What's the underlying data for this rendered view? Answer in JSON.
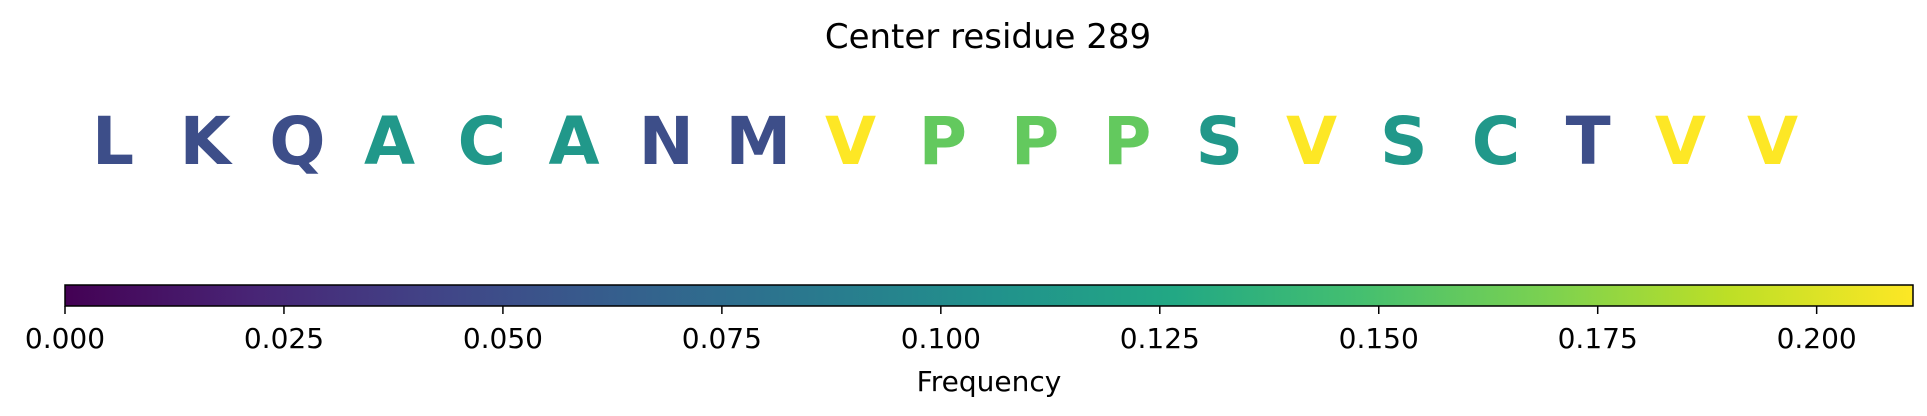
{
  "chart_data": {
    "type": "heatmap",
    "title": "Center residue 289",
    "residues": [
      {
        "letter": "L",
        "value": 0.05
      },
      {
        "letter": "K",
        "value": 0.05
      },
      {
        "letter": "Q",
        "value": 0.05
      },
      {
        "letter": "A",
        "value": 0.112
      },
      {
        "letter": "C",
        "value": 0.112
      },
      {
        "letter": "A",
        "value": 0.112
      },
      {
        "letter": "N",
        "value": 0.05
      },
      {
        "letter": "M",
        "value": 0.05
      },
      {
        "letter": "V",
        "value": 0.211
      },
      {
        "letter": "P",
        "value": 0.16
      },
      {
        "letter": "P",
        "value": 0.16
      },
      {
        "letter": "P",
        "value": 0.16
      },
      {
        "letter": "S",
        "value": 0.112
      },
      {
        "letter": "V",
        "value": 0.211
      },
      {
        "letter": "S",
        "value": 0.112
      },
      {
        "letter": "C",
        "value": 0.112
      },
      {
        "letter": "T",
        "value": 0.05
      },
      {
        "letter": "V",
        "value": 0.211
      },
      {
        "letter": "V",
        "value": 0.211
      }
    ],
    "colorbar": {
      "colormap": "viridis",
      "range": [
        0,
        0.211
      ],
      "ticks": [
        0.0,
        0.025,
        0.05,
        0.075,
        0.1,
        0.125,
        0.15,
        0.175,
        0.2
      ],
      "tick_labels": [
        "0.000",
        "0.025",
        "0.050",
        "0.075",
        "0.100",
        "0.125",
        "0.150",
        "0.175",
        "0.200"
      ],
      "label": "Frequency",
      "orientation": "horizontal"
    }
  }
}
